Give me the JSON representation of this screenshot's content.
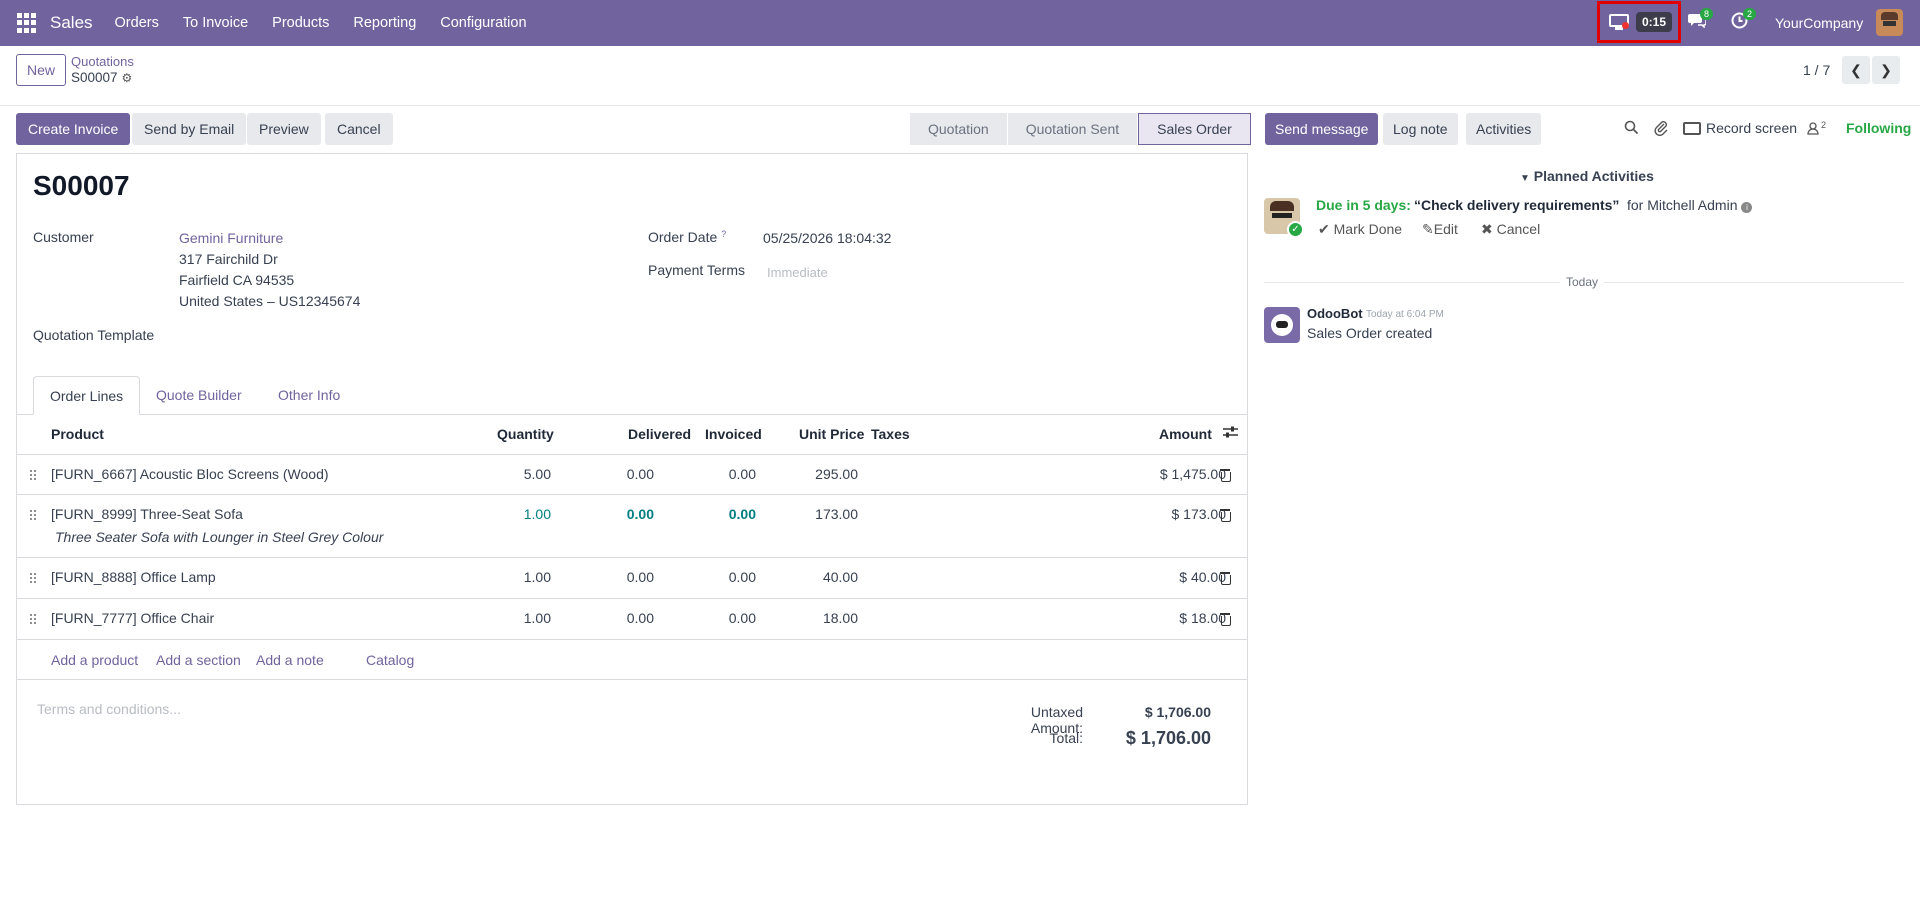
{
  "navbar": {
    "app_name": "Sales",
    "menu": [
      "Orders",
      "To Invoice",
      "Products",
      "Reporting",
      "Configuration"
    ],
    "timer": "0:15",
    "messages_badge": "8",
    "activities_badge": "2",
    "company": "YourCompany",
    "icons": [
      "apps-grid-icon",
      "monitor-record-icon",
      "chat-icon",
      "clock-icon"
    ]
  },
  "control_panel": {
    "new_label": "New",
    "breadcrumb_parent": "Quotations",
    "breadcrumb_current": "S00007",
    "pager": "1 / 7",
    "prev": "❮",
    "next": "❯"
  },
  "actions": {
    "create_invoice": "Create Invoice",
    "send_email": "Send by Email",
    "preview": "Preview",
    "cancel": "Cancel"
  },
  "statusbar": {
    "stages": [
      "Quotation",
      "Quotation Sent",
      "Sales Order"
    ],
    "active": "Sales Order"
  },
  "form": {
    "name": "S00007",
    "customer_label": "Customer",
    "customer_name": "Gemini Furniture",
    "address_line1": "317 Fairchild Dr",
    "address_line2": "Fairfield CA 94535",
    "address_line3": "United States – US12345674",
    "order_date_label": "Order Date",
    "order_date_help": "?",
    "order_date": "05/25/2026 18:04:32",
    "payment_terms_label": "Payment Terms",
    "payment_terms_placeholder": "Immediate",
    "quotation_template_label": "Quotation Template"
  },
  "tabs": [
    "Order Lines",
    "Quote Builder",
    "Other Info"
  ],
  "table": {
    "headers": {
      "product": "Product",
      "quantity": "Quantity",
      "delivered": "Delivered",
      "invoiced": "Invoiced",
      "unit_price": "Unit Price",
      "taxes": "Taxes",
      "amount": "Amount"
    },
    "rows": [
      {
        "product": "[FURN_6667] Acoustic Bloc Screens (Wood)",
        "desc": "",
        "quantity": "5.00",
        "delivered": "0.00",
        "invoiced": "0.00",
        "unit_price": "295.00",
        "amount": "$ 1,475.00"
      },
      {
        "product": "[FURN_8999] Three-Seat Sofa",
        "desc": "Three Seater Sofa with Lounger in Steel Grey Colour",
        "quantity": "1.00",
        "delivered": "0.00",
        "invoiced": "0.00",
        "unit_price": "173.00",
        "amount": "$ 173.00"
      },
      {
        "product": "[FURN_8888] Office Lamp",
        "desc": "",
        "quantity": "1.00",
        "delivered": "0.00",
        "invoiced": "0.00",
        "unit_price": "40.00",
        "amount": "$ 40.00"
      },
      {
        "product": "[FURN_7777] Office Chair",
        "desc": "",
        "quantity": "1.00",
        "delivered": "0.00",
        "invoiced": "0.00",
        "unit_price": "18.00",
        "amount": "$ 18.00"
      }
    ],
    "add_product": "Add a product",
    "add_section": "Add a section",
    "add_note": "Add a note",
    "catalog": "Catalog"
  },
  "footer": {
    "terms_placeholder": "Terms and conditions...",
    "untaxed_label": "Untaxed Amount:",
    "untaxed_value": "$ 1,706.00",
    "total_label": "Total:",
    "total_value": "$ 1,706.00"
  },
  "chatter": {
    "send_message": "Send message",
    "log_note": "Log note",
    "activities": "Activities",
    "record_screen": "Record screen",
    "followers_count": "2",
    "following": "Following",
    "planned_activities": "Planned Activities",
    "due": "Due in 5 days:",
    "activity_title": "“Check delivery requirements”",
    "activity_for": "for Mitchell Admin",
    "mark_done": "Mark Done",
    "edit": "Edit",
    "cancel": "Cancel",
    "today": "Today",
    "bot_name": "OdooBot",
    "bot_time": "Today at 6:04 PM",
    "bot_message": "Sales Order created"
  },
  "colors": {
    "brand": "#71639e",
    "success": "#28a745",
    "teal": "#017e84",
    "highlight": "#e00000"
  }
}
